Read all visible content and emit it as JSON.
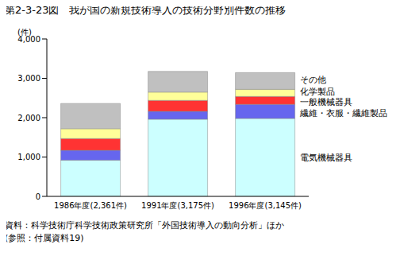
{
  "chart_data": {
    "type": "bar",
    "title": "第2-3-23図　我が国の新規技術導入の技術分野別件数の推移",
    "y_label": "(件)",
    "categories": [
      "1986年度(2,361件)",
      "1991年度(3,175件)",
      "1996年度(3,145件)"
    ],
    "series": [
      {
        "name": "電気機械器具",
        "color": "#ccffff",
        "values": [
          920,
          1960,
          1980
        ]
      },
      {
        "name": "繊維・衣服・繊維製品",
        "color": "#6666ee",
        "values": [
          250,
          200,
          360
        ]
      },
      {
        "name": "一般機械器具",
        "color": "#ff3333",
        "values": [
          300,
          280,
          200
        ]
      },
      {
        "name": "化学製品",
        "color": "#ffff99",
        "values": [
          250,
          210,
          180
        ]
      },
      {
        "name": "その他",
        "color": "#c0c0c0",
        "values": [
          641,
          525,
          425
        ]
      }
    ],
    "stacked": true,
    "ylim": [
      0,
      4000
    ],
    "yticks": [
      0,
      {
        "value": 1000,
        "label": "1,000"
      },
      {
        "value": 2000,
        "label": "2,000"
      },
      {
        "value": 3000,
        "label": "3,000"
      },
      {
        "value": 4000,
        "label": "4,000"
      }
    ],
    "grid": false,
    "legend": "right",
    "notes": [
      "資料：科学技術庁科学技術政策研究所「外国技術導入の動向分析」ほか",
      "(参照：付属資料19)"
    ]
  }
}
